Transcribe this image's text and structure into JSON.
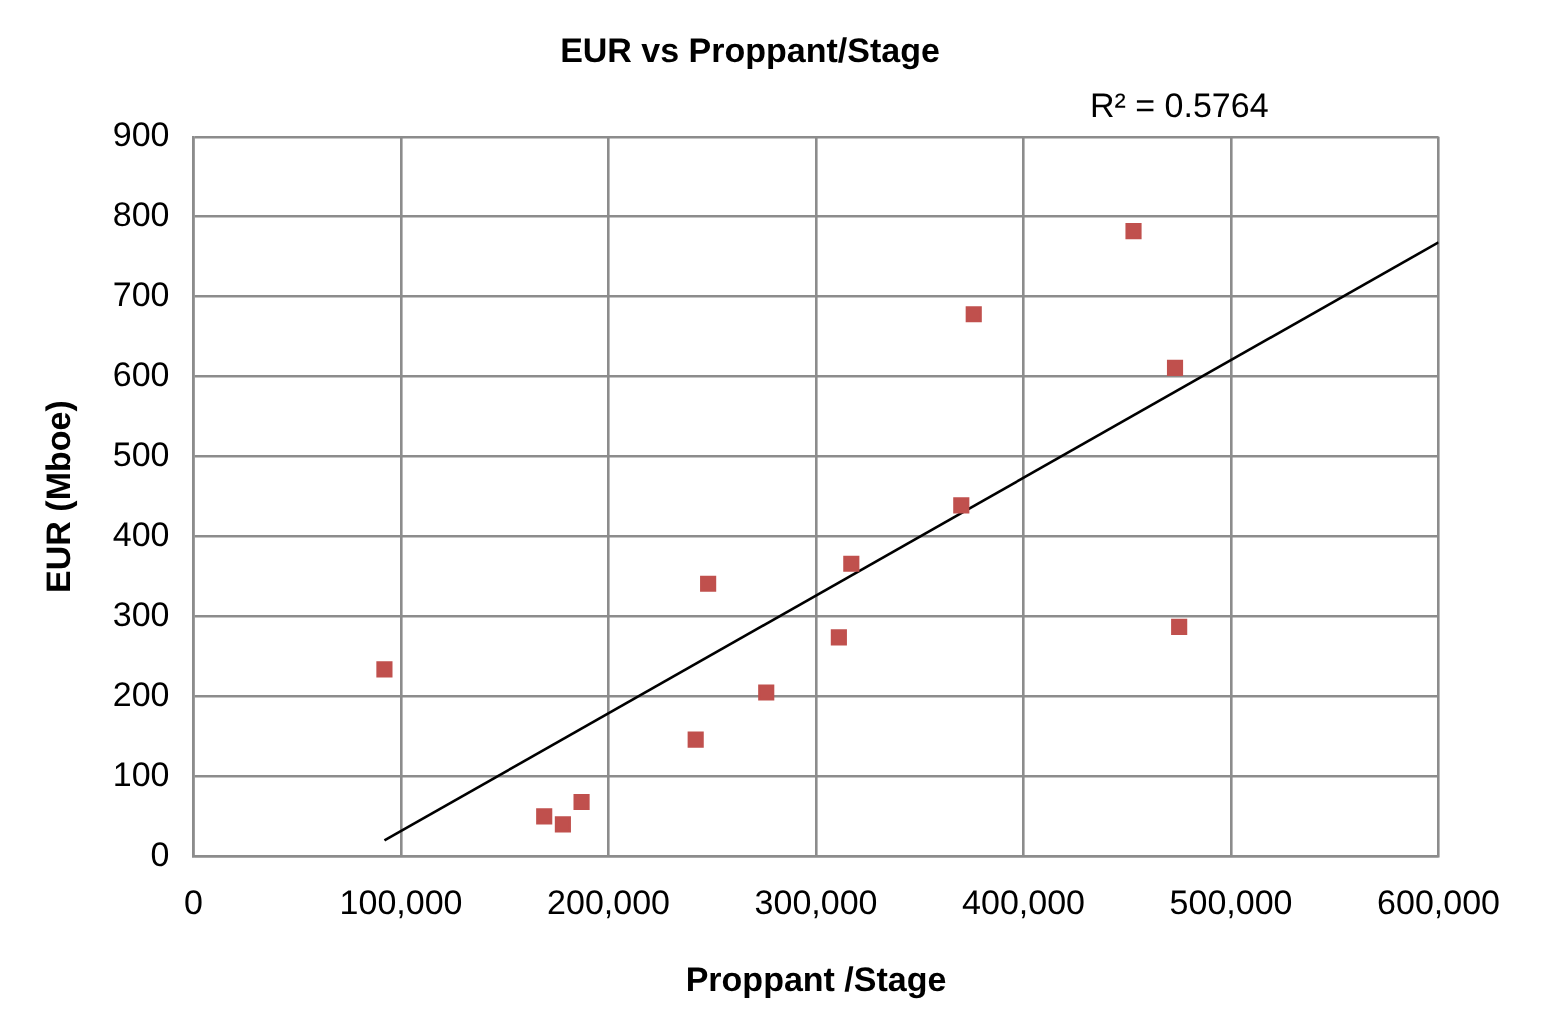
{
  "chart_data": {
    "type": "scatter",
    "title": "EUR vs Proppant/Stage",
    "xlabel": "Proppant /Stage",
    "ylabel": "EUR (Mboe)",
    "annotations": [
      "R² = 0.5764"
    ],
    "x": [
      92000,
      169000,
      178000,
      187000,
      242000,
      248000,
      276000,
      311000,
      317000,
      370000,
      376000,
      453000,
      473000,
      475000
    ],
    "series": [
      {
        "color": "#c0504d",
        "marker": "square",
        "values": [
          234,
          50,
          40,
          68,
          146,
          341,
          205,
          274,
          366,
          439,
          678,
          782,
          611,
          287
        ]
      },
      {
        "type": "line",
        "color": "#000000",
        "marker": "none",
        "x": [
          92000,
          600000
        ],
        "values": [
          20,
          768
        ]
      }
    ],
    "xlim": [
      0,
      600000
    ],
    "xticks": [
      {
        "value": 0,
        "label": "0"
      },
      {
        "value": 100000,
        "label": "100,000"
      },
      {
        "value": 200000,
        "label": "200,000"
      },
      {
        "value": 300000,
        "label": "300,000"
      },
      {
        "value": 400000,
        "label": "400,000"
      },
      {
        "value": 500000,
        "label": "500,000"
      },
      {
        "value": 600000,
        "label": "600,000"
      }
    ],
    "ylim": [
      0,
      900
    ],
    "yticks": [
      0,
      100,
      200,
      300,
      400,
      500,
      600,
      700,
      800,
      900
    ],
    "grid": true,
    "legend": false
  }
}
